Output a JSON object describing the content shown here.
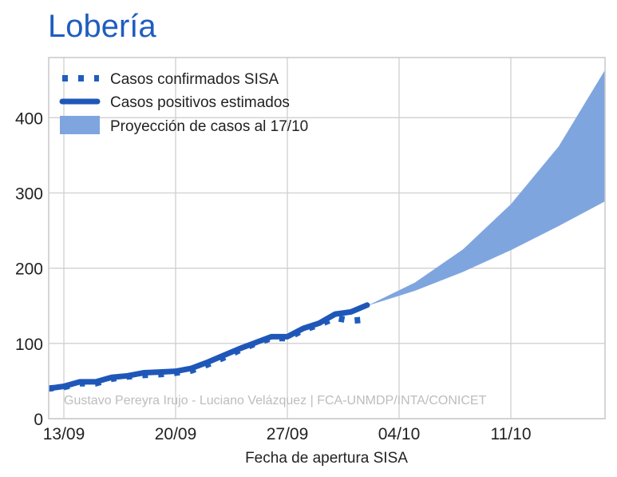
{
  "chart_data": {
    "type": "line",
    "title": "Lobería",
    "xlabel": "Fecha de apertura SISA",
    "ylabel": "",
    "credit": "Gustavo Pereyra Irujo - Luciano Velázquez | FCA-UNMDP/INTA/CONICET",
    "x_ticks": [
      "13/09",
      "20/09",
      "27/09",
      "04/10",
      "11/10"
    ],
    "y_ticks": [
      "0",
      "100",
      "200",
      "300",
      "400"
    ],
    "ylim": [
      0,
      480
    ],
    "grid": true,
    "legend": {
      "position": "top-left",
      "entries": [
        "Casos confirmados SISA",
        "Casos positivos estimados",
        "Proyección de casos al 17/10"
      ]
    },
    "colors": {
      "title": "#1f5dbf",
      "confirmed": "#1f5dbf",
      "estimated": "#1f57b9",
      "projection": "#7fa5df",
      "grid": "#d0d0d0",
      "frame": "#c8c8c8"
    },
    "series": [
      {
        "name": "Casos confirmados SISA",
        "style": "dotted",
        "x": [
          "12/09",
          "13/09",
          "14/09",
          "15/09",
          "16/09",
          "17/09",
          "18/09",
          "19/09",
          "20/09",
          "21/09",
          "22/09",
          "23/09",
          "24/09",
          "25/09",
          "26/09",
          "27/09",
          "28/09",
          "29/09",
          "30/09",
          "01/10",
          "02/10"
        ],
        "values": [
          40,
          42,
          47,
          47,
          53,
          56,
          58,
          59,
          61,
          64,
          72,
          81,
          91,
          100,
          107,
          107,
          118,
          125,
          134,
          130,
          132
        ]
      },
      {
        "name": "Casos positivos estimados",
        "style": "solid",
        "x": [
          "12/09",
          "13/09",
          "14/09",
          "15/09",
          "16/09",
          "17/09",
          "18/09",
          "19/09",
          "20/09",
          "21/09",
          "22/09",
          "23/09",
          "24/09",
          "25/09",
          "26/09",
          "27/09",
          "28/09",
          "29/09",
          "30/09",
          "01/10",
          "02/10"
        ],
        "values": [
          40,
          43,
          49,
          49,
          55,
          57,
          61,
          62,
          63,
          67,
          75,
          84,
          93,
          101,
          109,
          109,
          120,
          127,
          139,
          142,
          151
        ]
      }
    ],
    "projection": {
      "name": "Proyección de casos al 17/10",
      "x": [
        "02/10",
        "05/10",
        "08/10",
        "11/10",
        "14/10",
        "17/10"
      ],
      "lower": [
        150,
        170,
        195,
        224,
        256,
        290
      ],
      "upper": [
        150,
        181,
        225,
        285,
        362,
        467
      ]
    }
  }
}
